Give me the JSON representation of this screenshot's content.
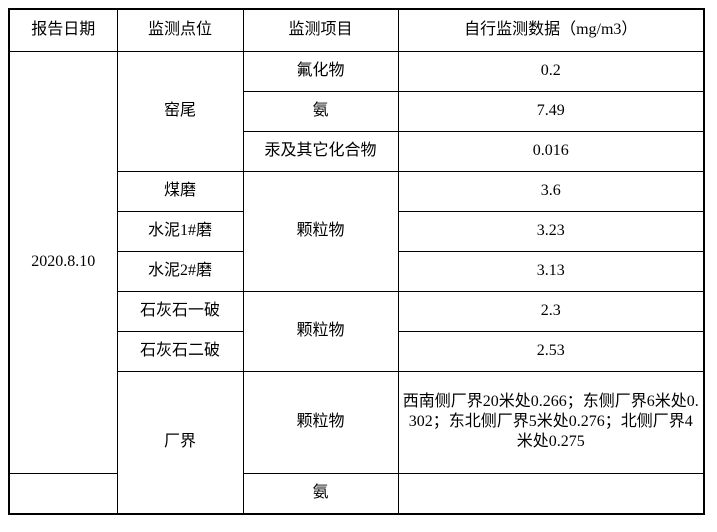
{
  "table": {
    "columns": [
      "报告日期",
      "监测点位",
      "监测项目",
      "自行监测数据（mg/m3）"
    ],
    "report_date": "2020.8.10",
    "body": [
      {
        "point": "窑尾",
        "item": "氟化物",
        "value": "0.2"
      },
      {
        "item": "氨",
        "value": "7.49"
      },
      {
        "item": "汞及其它化合物",
        "value": "0.016"
      },
      {
        "point": "煤磨",
        "item": "颗粒物",
        "value": "3.6"
      },
      {
        "point": "水泥1#磨",
        "value": "3.23"
      },
      {
        "point": "水泥2#磨",
        "value": "3.13"
      },
      {
        "point": "石灰石一破",
        "item": "颗粒物",
        "value": "2.3"
      },
      {
        "point": "石灰石二破",
        "value": "2.53"
      },
      {
        "point": "厂界",
        "item": "颗粒物",
        "value": "西南侧厂界20米处0.266；东侧厂界6米处0.302；东北侧厂界5米处0.276；北侧厂界4米处0.275"
      },
      {
        "item": "氨",
        "value": ""
      }
    ],
    "colors": {
      "border": "#000000",
      "text": "#000000",
      "background": "#ffffff"
    }
  }
}
